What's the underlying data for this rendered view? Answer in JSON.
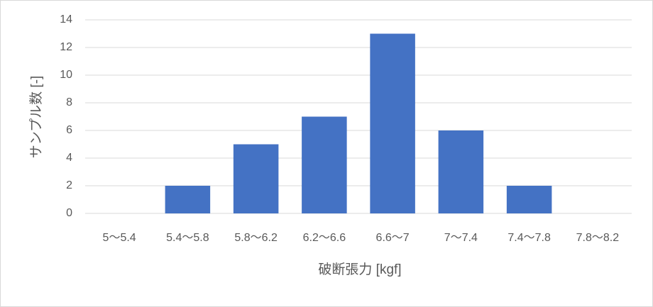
{
  "chart_data": {
    "type": "bar",
    "x_label": "破断張力 [kgf]",
    "y_label": "サンプル数 [-]",
    "categories": [
      "5～5.4",
      "5.4～5.8",
      "5.8～6.2",
      "6.2～6.6",
      "6.6～7",
      "7～7.4",
      "7.4～7.8",
      "7.8～8.2"
    ],
    "values": [
      0,
      2,
      5,
      7,
      13,
      6,
      2,
      0
    ],
    "color": "#4472c4",
    "ylim": [
      0,
      14
    ],
    "yticks": [
      0,
      2,
      4,
      6,
      8,
      10,
      12,
      14
    ],
    "grid": true
  }
}
